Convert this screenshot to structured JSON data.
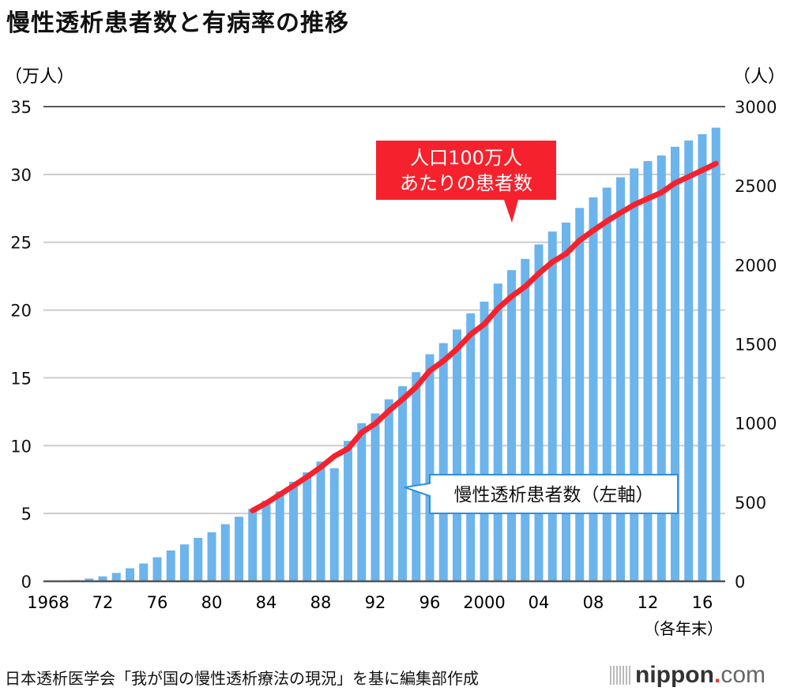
{
  "title": "慢性透析患者数と有病率の推移",
  "footer": "日本透析医学会「我が国の慢性透析療法の現況」を基に編集部作成",
  "logo": {
    "name": "nippon",
    "dot": ".",
    "suffix": "com"
  },
  "chart_data": {
    "type": "bar+line",
    "title": "慢性透析患者数と有病率の推移",
    "left_axis": {
      "unit_label": "（万人）",
      "ylim": [
        0,
        35
      ],
      "ticks": [
        "0",
        "5",
        "10",
        "15",
        "20",
        "25",
        "30",
        "35"
      ]
    },
    "right_axis": {
      "unit_label": "（人）",
      "ylim": [
        0,
        3000
      ],
      "ticks": [
        "0",
        "500",
        "1000",
        "1500",
        "2000",
        "2500",
        "3000"
      ]
    },
    "x_tick_labels": [
      {
        "year": 1968,
        "label": "1968"
      },
      {
        "year": 1972,
        "label": "72"
      },
      {
        "year": 1976,
        "label": "76"
      },
      {
        "year": 1980,
        "label": "80"
      },
      {
        "year": 1984,
        "label": "84"
      },
      {
        "year": 1988,
        "label": "88"
      },
      {
        "year": 1992,
        "label": "92"
      },
      {
        "year": 1996,
        "label": "96"
      },
      {
        "year": 2000,
        "label": "2000"
      },
      {
        "year": 2004,
        "label": "04"
      },
      {
        "year": 2008,
        "label": "08"
      },
      {
        "year": 2012,
        "label": "12"
      },
      {
        "year": 2016,
        "label": "16"
      }
    ],
    "x_note": "（各年末）",
    "grid": true,
    "colors": {
      "bars": "#6cb4ec",
      "line": "#f5222d",
      "callout_red": "#f5222d",
      "callout_blue_border": "#2f8fe0"
    },
    "bars": {
      "name": "慢性透析患者数（左軸）",
      "axis": "left",
      "years": [
        1968,
        1969,
        1970,
        1971,
        1972,
        1973,
        1974,
        1975,
        1976,
        1977,
        1978,
        1979,
        1980,
        1981,
        1982,
        1983,
        1984,
        1985,
        1986,
        1987,
        1988,
        1989,
        1990,
        1991,
        1992,
        1993,
        1994,
        1995,
        1996,
        1997,
        1998,
        1999,
        2000,
        2001,
        2002,
        2003,
        2004,
        2005,
        2006,
        2007,
        2008,
        2009,
        2010,
        2011,
        2012,
        2013,
        2014,
        2015,
        2016,
        2017
      ],
      "values": [
        0.02,
        0.05,
        0.09,
        0.2,
        0.36,
        0.62,
        0.96,
        1.31,
        1.77,
        2.27,
        2.72,
        3.2,
        3.61,
        4.21,
        4.76,
        5.34,
        5.94,
        6.63,
        7.34,
        8.03,
        8.83,
        8.33,
        10.35,
        11.66,
        12.38,
        13.42,
        14.38,
        15.42,
        16.74,
        17.56,
        18.56,
        19.76,
        20.62,
        21.95,
        22.94,
        23.77,
        24.84,
        25.79,
        26.45,
        27.53,
        28.31,
        29.03,
        29.79,
        30.44,
        30.98,
        31.4,
        32.04,
        32.5,
        32.97,
        33.45
      ]
    },
    "line": {
      "name": "人口100万人あたりの患者数",
      "axis": "right",
      "years": [
        1983,
        1984,
        1985,
        1986,
        1987,
        1988,
        1989,
        1990,
        1991,
        1992,
        1993,
        1994,
        1995,
        1996,
        1997,
        1998,
        1999,
        2000,
        2001,
        2002,
        2003,
        2004,
        2005,
        2006,
        2007,
        2008,
        2009,
        2010,
        2011,
        2012,
        2013,
        2014,
        2015,
        2016,
        2017
      ],
      "values": [
        447,
        494,
        548,
        604,
        660,
        721,
        791,
        838,
        940,
        996,
        1077,
        1150,
        1228,
        1330,
        1392,
        1468,
        1560,
        1625,
        1724,
        1800,
        1863,
        1945,
        2018,
        2070,
        2155,
        2217,
        2276,
        2329,
        2380,
        2419,
        2457,
        2517,
        2557,
        2598,
        2640
      ]
    },
    "annotations": {
      "line_label_1": "人口100万人",
      "line_label_2": "あたりの患者数",
      "bar_label": "慢性透析患者数（左軸）"
    }
  }
}
